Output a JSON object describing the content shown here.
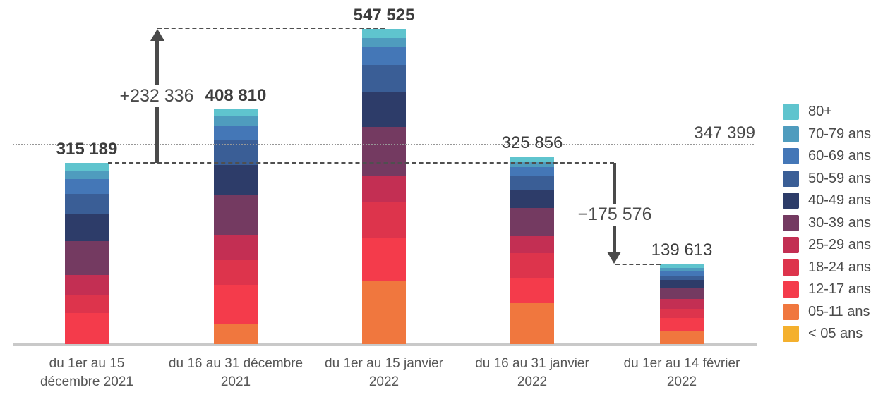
{
  "chart_data": {
    "type": "bar",
    "stacked": true,
    "title": "",
    "xlabel": "",
    "ylabel": "",
    "ylim": [
      0,
      560000
    ],
    "grid": false,
    "legend_position": "right",
    "categories": [
      [
        "du 1er au 15",
        "décembre 2021"
      ],
      [
        "du 16 au 31 décembre",
        "2021"
      ],
      [
        "du 1er au 15 janvier",
        "2022"
      ],
      [
        "du 16 au 31 janvier",
        "2022"
      ],
      [
        "du 1er au 14 février",
        "2022"
      ]
    ],
    "totals": [
      315189,
      408810,
      547525,
      325856,
      139613
    ],
    "total_labels": [
      "315 189",
      "408 810",
      "547 525",
      "325 856",
      "139 613"
    ],
    "total_label_bold": [
      true,
      true,
      true,
      false,
      false
    ],
    "series": [
      {
        "name": "80+",
        "color": "#5fc4ce",
        "values": [
          14300,
          13200,
          15400,
          9000,
          6900
        ]
      },
      {
        "name": "70-79 ans",
        "color": "#4f9cbe",
        "values": [
          14300,
          15200,
          16400,
          9100,
          5300
        ]
      },
      {
        "name": "60-69 ans",
        "color": "#4477b7",
        "values": [
          25800,
          25900,
          30700,
          16300,
          9000
        ]
      },
      {
        "name": "50-59 ans",
        "color": "#3a5e96",
        "values": [
          35600,
          43200,
          47800,
          22500,
          6800
        ]
      },
      {
        "name": "40-49 ans",
        "color": "#2d3c69",
        "values": [
          46200,
          51500,
          59200,
          32800,
          15000
        ]
      },
      {
        "name": "30-39 ans",
        "color": "#743a61",
        "values": [
          59200,
          70000,
          85000,
          49100,
          18300
        ]
      },
      {
        "name": "25-29 ans",
        "color": "#c32f53",
        "values": [
          33500,
          43900,
          47100,
          28700,
          17400
        ]
      },
      {
        "name": "18-24 ans",
        "color": "#dd344c",
        "values": [
          32700,
          42500,
          62000,
          43000,
          15000
        ]
      },
      {
        "name": "12-17 ans",
        "color": "#f43b4b",
        "values": [
          53589,
          68600,
          73600,
          43000,
          22300
        ]
      },
      {
        "name": "05-11 ans",
        "color": "#f0773e",
        "values": [
          0,
          34810,
          110325,
          72356,
          23613
        ]
      },
      {
        "name": "< 05 ans",
        "color": "#f4b02e",
        "values": [
          0,
          0,
          0,
          0,
          0
        ]
      }
    ],
    "reference_line": {
      "value": 347399,
      "label": "347 399"
    },
    "annotations": [
      {
        "type": "increase",
        "label": "+232 336"
      },
      {
        "type": "decrease",
        "label": "−175 576"
      }
    ]
  }
}
